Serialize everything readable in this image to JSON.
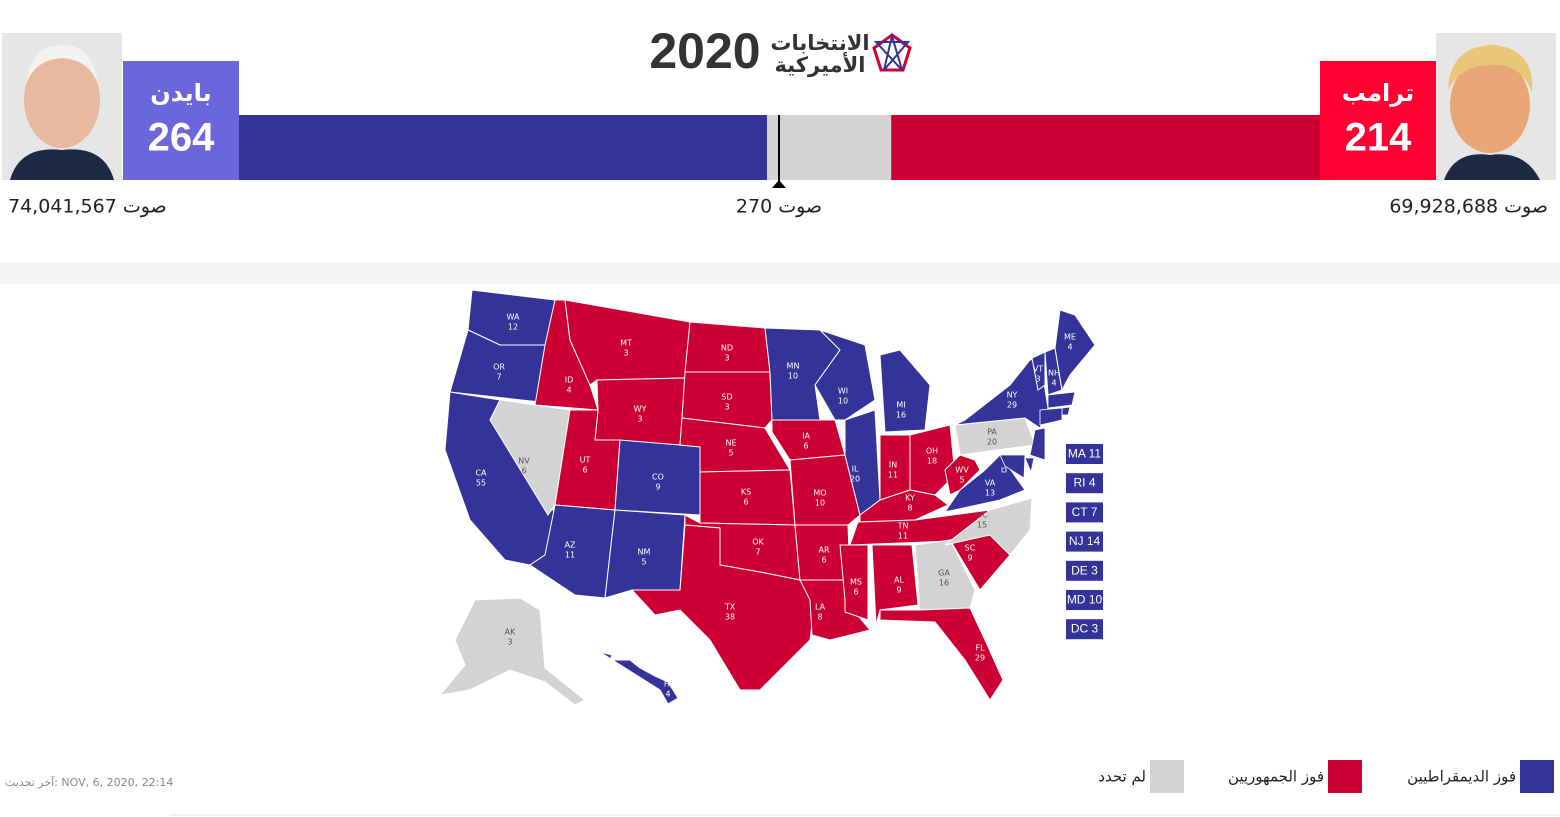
{
  "header": {
    "title": "2020",
    "subtitle": [
      "الانتخابات",
      "الأميركية"
    ]
  },
  "candidates": [
    {
      "name": "بايدن",
      "electoral": 264,
      "popular": "74,041,567 صوت",
      "color": "#333399",
      "box_color": "#6b66d9"
    },
    {
      "name": "ترامب",
      "electoral": 214,
      "popular": "69,928,688 صوت",
      "color": "#cc0033",
      "box_color": "#ff0033"
    }
  ],
  "threshold": {
    "value": 270,
    "label": "270 صوت"
  },
  "undecided_color": "#d3d3d3",
  "states": [
    {
      "abbr": "WA",
      "votes": 12,
      "color": "#333399"
    },
    {
      "abbr": "OR",
      "votes": 7,
      "color": "#333399"
    },
    {
      "abbr": "CA",
      "votes": 55,
      "color": "#333399"
    },
    {
      "abbr": "NV",
      "votes": 6,
      "color": "#d3d3d3"
    },
    {
      "abbr": "ID",
      "votes": 4,
      "color": "#cc0033"
    },
    {
      "abbr": "MT",
      "votes": 3,
      "color": "#cc0033"
    },
    {
      "abbr": "WY",
      "votes": 3,
      "color": "#cc0033"
    },
    {
      "abbr": "UT",
      "votes": 6,
      "color": "#cc0033"
    },
    {
      "abbr": "CO",
      "votes": 9,
      "color": "#333399"
    },
    {
      "abbr": "AZ",
      "votes": 11,
      "color": "#333399"
    },
    {
      "abbr": "NM",
      "votes": 5,
      "color": "#333399"
    },
    {
      "abbr": "ND",
      "votes": 3,
      "color": "#cc0033"
    },
    {
      "abbr": "SD",
      "votes": 3,
      "color": "#cc0033"
    },
    {
      "abbr": "NE",
      "votes": 5,
      "color": "#cc0033"
    },
    {
      "abbr": "KS",
      "votes": 6,
      "color": "#cc0033"
    },
    {
      "abbr": "OK",
      "votes": 7,
      "color": "#cc0033"
    },
    {
      "abbr": "TX",
      "votes": 38,
      "color": "#cc0033"
    },
    {
      "abbr": "MN",
      "votes": 10,
      "color": "#333399"
    },
    {
      "abbr": "IA",
      "votes": 6,
      "color": "#cc0033"
    },
    {
      "abbr": "MO",
      "votes": 10,
      "color": "#cc0033"
    },
    {
      "abbr": "AR",
      "votes": 6,
      "color": "#cc0033"
    },
    {
      "abbr": "LA",
      "votes": 8,
      "color": "#cc0033"
    },
    {
      "abbr": "WI",
      "votes": 10,
      "color": "#333399"
    },
    {
      "abbr": "IL",
      "votes": 20,
      "color": "#333399"
    },
    {
      "abbr": "MI",
      "votes": 16,
      "color": "#333399"
    },
    {
      "abbr": "IN",
      "votes": 11,
      "color": "#cc0033"
    },
    {
      "abbr": "OH",
      "votes": 18,
      "color": "#cc0033"
    },
    {
      "abbr": "KY",
      "votes": 8,
      "color": "#cc0033"
    },
    {
      "abbr": "TN",
      "votes": 11,
      "color": "#cc0033"
    },
    {
      "abbr": "MS",
      "votes": 6,
      "color": "#cc0033"
    },
    {
      "abbr": "AL",
      "votes": 9,
      "color": "#cc0033"
    },
    {
      "abbr": "GA",
      "votes": 16,
      "color": "#d3d3d3"
    },
    {
      "abbr": "FL",
      "votes": 29,
      "color": "#cc0033"
    },
    {
      "abbr": "SC",
      "votes": 9,
      "color": "#cc0033"
    },
    {
      "abbr": "NC",
      "votes": 15,
      "color": "#d3d3d3"
    },
    {
      "abbr": "VA",
      "votes": 13,
      "color": "#333399"
    },
    {
      "abbr": "WV",
      "votes": 5,
      "color": "#cc0033"
    },
    {
      "abbr": "PA",
      "votes": 20,
      "color": "#d3d3d3"
    },
    {
      "abbr": "NY",
      "votes": 29,
      "color": "#333399"
    },
    {
      "abbr": "VT",
      "votes": 3,
      "color": "#333399"
    },
    {
      "abbr": "NH",
      "votes": 4,
      "color": "#333399"
    },
    {
      "abbr": "ME",
      "votes": 4,
      "color": "#333399"
    },
    {
      "abbr": "AK",
      "votes": 3,
      "color": "#d3d3d3"
    },
    {
      "abbr": "HI",
      "votes": 4,
      "color": "#333399"
    }
  ],
  "small_states": [
    {
      "abbr": "MA",
      "votes": 11,
      "color": "#333399"
    },
    {
      "abbr": "RI",
      "votes": 4,
      "color": "#333399"
    },
    {
      "abbr": "CT",
      "votes": 7,
      "color": "#333399"
    },
    {
      "abbr": "NJ",
      "votes": 14,
      "color": "#333399"
    },
    {
      "abbr": "DE",
      "votes": 3,
      "color": "#333399"
    },
    {
      "abbr": "MD",
      "votes": 10,
      "color": "#333399"
    },
    {
      "abbr": "DC",
      "votes": 3,
      "color": "#333399"
    }
  ],
  "legend": [
    {
      "label": "فوز الديمقراطيين",
      "color": "#333399"
    },
    {
      "label": "فوز الجمهوريين",
      "color": "#cc0033"
    },
    {
      "label": "لم تحدد",
      "color": "#d3d3d3"
    }
  ],
  "updated": "آخر تحديث: NOV, 6, 2020, 22:14"
}
